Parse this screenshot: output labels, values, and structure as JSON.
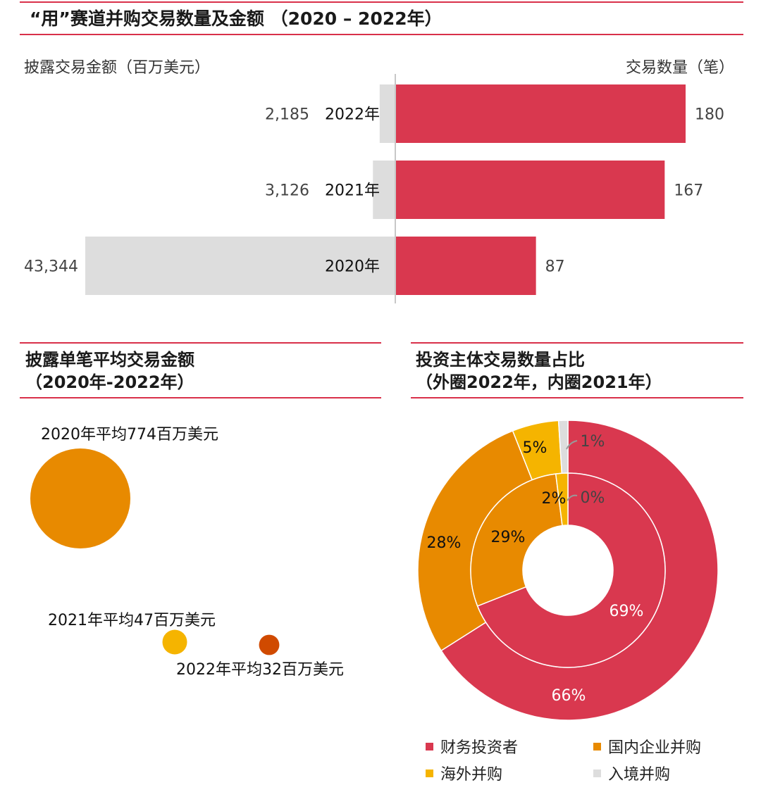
{
  "main": {
    "title": "“用”赛道并购交易数量及金额 （2020 – 2022年）",
    "left_label": "披露交易金额（百万美元）",
    "right_label": "交易数量（笔）"
  },
  "avg": {
    "title_line1": "披露单笔平均交易金额",
    "title_line2": "（2020年-2022年）"
  },
  "donut": {
    "title_line1": "投资主体交易数量占比",
    "title_line2": "（外圈2022年，内圈2021年）"
  },
  "colors": {
    "accent": "#d9304a",
    "red": "#d9384f",
    "orange": "#e88a00",
    "yellow": "#f5b400",
    "gray": "#dddddd",
    "dark_orange": "#d04a00"
  },
  "chart_data": [
    {
      "type": "bar",
      "title": "“用”赛道并购交易数量及金额 （2020 – 2022年）",
      "categories": [
        "2022年",
        "2021年",
        "2020年"
      ],
      "series": [
        {
          "name": "披露交易金额（百万美元）",
          "values": [
            2185,
            3126,
            43344
          ],
          "labels": [
            "2,185",
            "3,126",
            "43,344"
          ]
        },
        {
          "name": "交易数量（笔）",
          "values": [
            180,
            167,
            87
          ],
          "labels": [
            "180",
            "167",
            "87"
          ]
        }
      ]
    },
    {
      "type": "scatter",
      "title": "披露单笔平均交易金额（2020年-2022年）",
      "points": [
        {
          "year": "2020年",
          "value": 774,
          "label": "2020年平均774百万美元"
        },
        {
          "year": "2021年",
          "value": 47,
          "label": "2021年平均47百万美元"
        },
        {
          "year": "2022年",
          "value": 32,
          "label": "2022年平均32百万美元"
        }
      ]
    },
    {
      "type": "pie",
      "title": "投资主体交易数量占比（外圈2022年，内圈2021年）",
      "categories": [
        "财务投资者",
        "国内企业并购",
        "海外并购",
        "入境并购"
      ],
      "series": [
        {
          "name": "2022年",
          "values": [
            66,
            28,
            5,
            1
          ],
          "labels": [
            "66%",
            "28%",
            "5%",
            "1%"
          ]
        },
        {
          "name": "2021年",
          "values": [
            69,
            29,
            2,
            0
          ],
          "labels": [
            "69%",
            "29%",
            "2%",
            "0%"
          ]
        }
      ]
    }
  ]
}
